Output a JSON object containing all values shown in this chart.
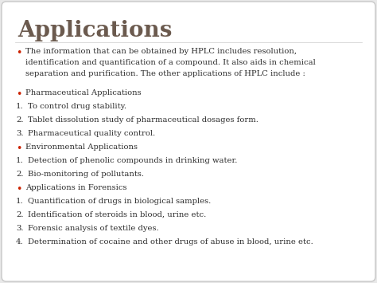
{
  "title": "Applications",
  "title_color": "#6B5A4E",
  "bg_color": "#E8E8E8",
  "card_bg": "#FFFFFF",
  "border_color": "#C8C8C8",
  "text_color": "#2B2B2B",
  "bullet_color": "#CC2200",
  "intro_lines": [
    "The information that can be obtained by HPLC includes resolution,",
    "identification and quantification of a compound. It also aids in chemical",
    "separation and purification. The other applications of HPLC include :"
  ],
  "lines": [
    {
      "type": "bullet",
      "text": "Pharmaceutical Applications"
    },
    {
      "type": "numbered",
      "num": "1.",
      "text": "To control drug stability."
    },
    {
      "type": "numbered",
      "num": "2.",
      "text": "Tablet dissolution study of pharmaceutical dosages form."
    },
    {
      "type": "numbered",
      "num": "3.",
      "text": "Pharmaceutical quality control."
    },
    {
      "type": "bullet",
      "text": "Environmental Applications"
    },
    {
      "type": "numbered",
      "num": "1.",
      "text": "Detection of phenolic compounds in drinking water."
    },
    {
      "type": "numbered",
      "num": "2.",
      "text": "Bio-monitoring of pollutants."
    },
    {
      "type": "bullet",
      "text": "Applications in Forensics"
    },
    {
      "type": "numbered",
      "num": "1.",
      "text": "Quantification of drugs in biological samples."
    },
    {
      "type": "numbered",
      "num": "2.",
      "text": "Identification of steroids in blood, urine etc."
    },
    {
      "type": "numbered",
      "num": "3.",
      "text": "Forensic analysis of textile dyes."
    },
    {
      "type": "numbered",
      "num": "4.",
      "text": "Determination of cocaine and other drugs of abuse in blood, urine etc."
    }
  ],
  "fig_width": 4.74,
  "fig_height": 3.55,
  "dpi": 100
}
